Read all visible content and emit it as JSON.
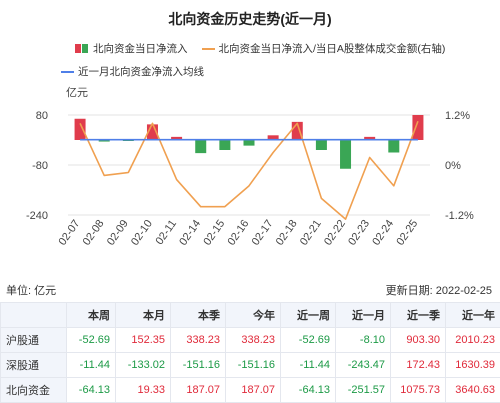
{
  "chart_data": {
    "type": "bar",
    "title": "北向资金历史走势(近一月)",
    "categories": [
      "02-07",
      "02-08",
      "02-09",
      "02-10",
      "02-11",
      "02-14",
      "02-15",
      "02-16",
      "02-17",
      "02-18",
      "02-21",
      "02-22",
      "02-23",
      "02-24",
      "02-25"
    ],
    "series": [
      {
        "name": "北向资金当日净流入",
        "kind": "bar",
        "axis": "left",
        "values": [
          68,
          -5,
          -3,
          50,
          10,
          -42,
          -32,
          -18,
          15,
          58,
          -32,
          -92,
          10,
          -40,
          80
        ]
      },
      {
        "name": "北向资金当日净流入/当日A股整体成交金额(右轴)",
        "kind": "line",
        "axis": "right",
        "values": [
          1.0,
          -0.25,
          -0.18,
          1.0,
          -0.35,
          -1.0,
          -1.0,
          -0.5,
          0.3,
          1.0,
          -0.8,
          -1.3,
          0.18,
          -0.5,
          1.05
        ]
      },
      {
        "name": "近一月北向资金净流入均线",
        "kind": "line",
        "axis": "left",
        "values": [
          1,
          1,
          1,
          1,
          1,
          1,
          1,
          1,
          1,
          1,
          1,
          1,
          1,
          1,
          1
        ]
      }
    ],
    "y_left": {
      "label": "亿元",
      "min": -240,
      "max": 80,
      "ticks": [
        "80",
        "-80",
        "-240"
      ],
      "tick_values": [
        80,
        -80,
        -240
      ]
    },
    "y_right": {
      "min": -1.2,
      "max": 1.2,
      "ticks": [
        "1.2%",
        "0%",
        "-1.2%"
      ],
      "tick_values": [
        1.2,
        0,
        -1.2
      ]
    },
    "grid": true,
    "legend_position": "top"
  },
  "colors": {
    "bar_positive": "#e03c4c",
    "bar_negative": "#3aa655",
    "ratio_line": "#f0a050",
    "avg_line": "#4f7fe8",
    "grid": "#e3e3e3"
  },
  "info": {
    "unit_label": "单位: 亿元",
    "update_label": "更新日期: 2022-02-25"
  },
  "table": {
    "headers": [
      "",
      "本周",
      "本月",
      "本季",
      "今年",
      "近一周",
      "近一月",
      "近一季",
      "近一年"
    ],
    "rows": [
      {
        "name": "沪股通",
        "values": [
          "-52.69",
          "152.35",
          "338.23",
          "338.23",
          "-52.69",
          "-8.10",
          "903.30",
          "2010.23"
        ]
      },
      {
        "name": "深股通",
        "values": [
          "-11.44",
          "-133.02",
          "-151.16",
          "-151.16",
          "-11.44",
          "-243.47",
          "172.43",
          "1630.39"
        ]
      },
      {
        "name": "北向资金",
        "values": [
          "-64.13",
          "19.33",
          "187.07",
          "187.07",
          "-64.13",
          "-251.57",
          "1075.73",
          "3640.63"
        ]
      }
    ]
  }
}
